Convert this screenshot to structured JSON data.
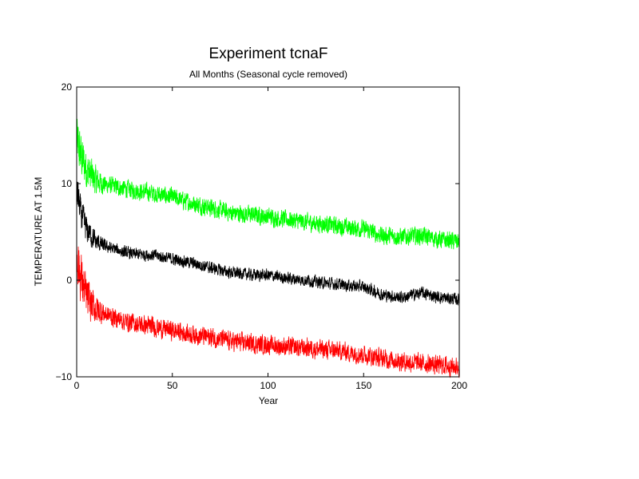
{
  "chart_data": {
    "type": "line",
    "title": "Experiment tcnaF",
    "subtitle": "All Months (Seasonal cycle removed)",
    "xlabel": "Year",
    "ylabel": "TEMPERATURE AT 1.5M",
    "xlim": [
      0,
      200
    ],
    "ylim": [
      -10,
      20
    ],
    "x_ticks": [
      0,
      50,
      100,
      150,
      200
    ],
    "y_ticks": [
      -10,
      0,
      10,
      20
    ],
    "grid": false,
    "legend": "none",
    "series": [
      {
        "color": "#00ff00",
        "noise": 0.8,
        "x": [
          0,
          2,
          5,
          10,
          15,
          20,
          25,
          30,
          40,
          50,
          60,
          70,
          80,
          90,
          100,
          110,
          120,
          130,
          140,
          150,
          160,
          170,
          180,
          190,
          200
        ],
        "values": [
          14.5,
          13.0,
          11.5,
          10.3,
          9.9,
          9.7,
          9.5,
          9.3,
          9.0,
          8.6,
          8.0,
          7.5,
          7.0,
          6.8,
          6.6,
          6.3,
          6.0,
          5.8,
          5.5,
          5.3,
          4.6,
          4.5,
          4.6,
          4.2,
          4.0
        ]
      },
      {
        "color": "#000000",
        "noise": 0.55,
        "x": [
          0,
          2,
          5,
          10,
          15,
          20,
          25,
          30,
          40,
          50,
          60,
          70,
          80,
          90,
          100,
          110,
          120,
          130,
          140,
          150,
          160,
          170,
          180,
          190,
          200
        ],
        "values": [
          9.5,
          7.0,
          5.3,
          4.0,
          3.5,
          3.2,
          2.9,
          2.7,
          2.6,
          2.2,
          1.8,
          1.3,
          0.8,
          0.6,
          0.5,
          0.2,
          0.0,
          -0.3,
          -0.5,
          -0.7,
          -1.5,
          -1.8,
          -1.3,
          -1.8,
          -2.0
        ]
      },
      {
        "color": "#ff0000",
        "noise": 0.85,
        "x": [
          0,
          2,
          5,
          10,
          15,
          20,
          25,
          30,
          40,
          50,
          60,
          70,
          80,
          90,
          100,
          110,
          120,
          130,
          140,
          150,
          160,
          170,
          180,
          190,
          200
        ],
        "values": [
          3.0,
          0.5,
          -1.8,
          -3.0,
          -3.5,
          -3.9,
          -4.2,
          -4.5,
          -4.8,
          -5.2,
          -5.6,
          -5.9,
          -6.3,
          -6.5,
          -6.7,
          -6.9,
          -7.0,
          -7.2,
          -7.4,
          -7.7,
          -8.1,
          -8.4,
          -8.6,
          -8.8,
          -9.0
        ]
      }
    ]
  }
}
